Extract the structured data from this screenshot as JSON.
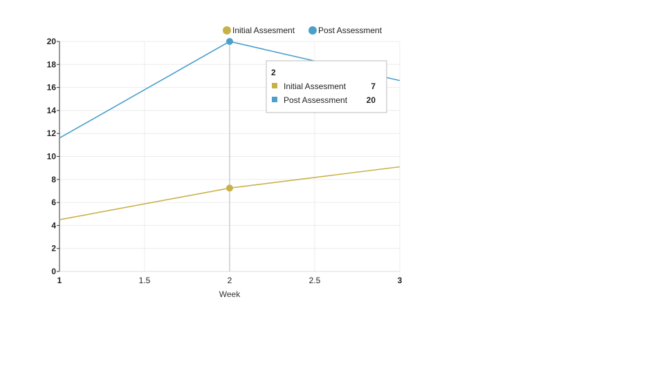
{
  "chart_data": {
    "type": "line",
    "title": "",
    "xlabel": "Week",
    "ylabel": "",
    "xlim": [
      1,
      3
    ],
    "ylim": [
      0,
      20
    ],
    "x_ticks": [
      "1",
      "1.5",
      "2",
      "2.5",
      "3"
    ],
    "y_ticks": [
      "0",
      "2",
      "4",
      "6",
      "8",
      "10",
      "12",
      "14",
      "16",
      "18",
      "20"
    ],
    "grid": true,
    "legend_position": "top",
    "series": [
      {
        "name": "Initial Assesment",
        "color": "#c9b14a",
        "x": [
          1,
          2,
          3
        ],
        "y": [
          4.5,
          7.25,
          9.1
        ]
      },
      {
        "name": "Post Assessment",
        "color": "#4a9fcb",
        "x": [
          1,
          2,
          3
        ],
        "y": [
          11.6,
          20,
          16.6
        ]
      }
    ],
    "highlight_x": 2,
    "tooltip": {
      "title": "2",
      "rows": [
        {
          "name": "Initial Assesment",
          "value": "7",
          "color": "#c9b14a"
        },
        {
          "name": "Post Assessment",
          "value": "20",
          "color": "#4a9fcb"
        }
      ]
    }
  }
}
